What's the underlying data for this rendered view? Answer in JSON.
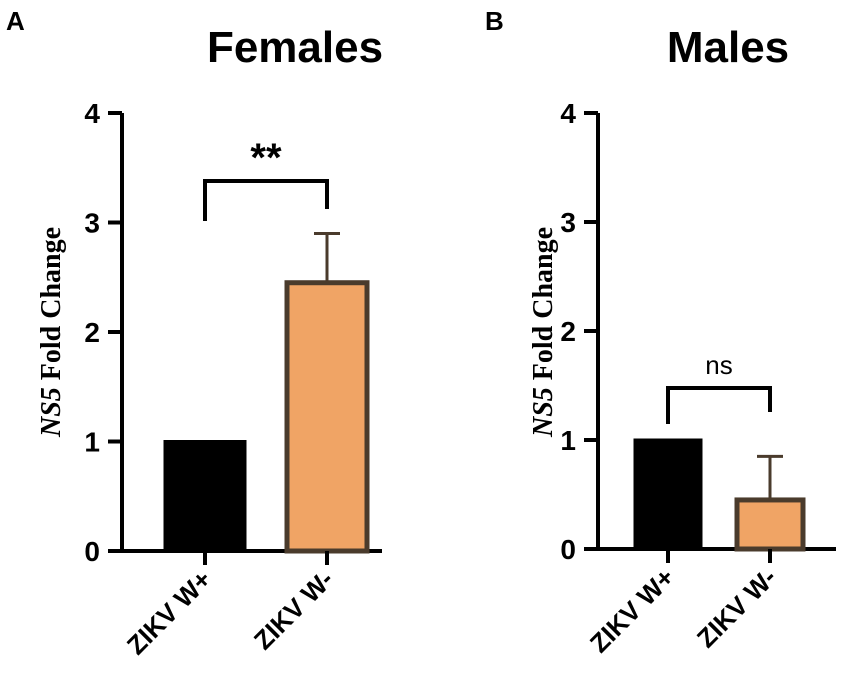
{
  "colors": {
    "axis": "#000000",
    "bar_positive": "#000000",
    "bar_negative_fill": "#F0A465",
    "bar_negative_edge": "#4A3B2C",
    "error_bar": "#4A3B2C",
    "bracket": "#000000"
  },
  "chart_data": [
    {
      "type": "bar",
      "panel_letter": "A",
      "title": "Females",
      "ylabel_italic": "NS5",
      "ylabel_rest": " Fold Change",
      "categories": [
        "ZIKV W+",
        "ZIKV W-"
      ],
      "values": [
        1.0,
        2.45
      ],
      "error_upper": [
        0.0,
        0.45
      ],
      "ylim": [
        0,
        4
      ],
      "yticks": [
        "0",
        "1",
        "2",
        "3",
        "4"
      ],
      "significance": {
        "label": "**",
        "between": [
          0,
          1
        ]
      }
    },
    {
      "type": "bar",
      "panel_letter": "B",
      "title": "Males",
      "ylabel_italic": "NS5",
      "ylabel_rest": " Fold Change",
      "categories": [
        "ZIKV W+",
        "ZIKV W-"
      ],
      "values": [
        1.0,
        0.45
      ],
      "error_upper": [
        0.0,
        0.4
      ],
      "ylim": [
        0,
        4
      ],
      "yticks": [
        "0",
        "1",
        "2",
        "3",
        "4"
      ],
      "significance": {
        "label": "ns",
        "between": [
          0,
          1
        ]
      }
    }
  ]
}
